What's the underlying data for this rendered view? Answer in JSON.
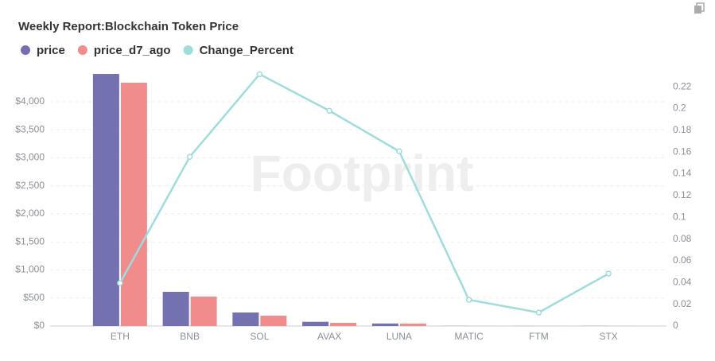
{
  "chart_data": {
    "type": "bar_line",
    "title": "Weekly Report:Blockchain Token Price",
    "watermark": "Footprint",
    "categories": [
      "ETH",
      "BNB",
      "SOL",
      "AVAX",
      "LUNA",
      "MATIC",
      "FTM",
      "STX"
    ],
    "series": [
      {
        "name": "price",
        "type": "bar",
        "color": "#7471b0",
        "values": [
          4496,
          610,
          241,
          75,
          45,
          2,
          1.5,
          2
        ]
      },
      {
        "name": "price_d7_ago",
        "type": "bar",
        "color": "#f08c8c",
        "values": [
          4340,
          525,
          184,
          57,
          42,
          2,
          1.5,
          2
        ]
      },
      {
        "name": "Change_Percent",
        "type": "line",
        "axis": "y2",
        "color": "#9fdcdc",
        "values": [
          0.0395,
          0.1556,
          0.2316,
          0.198,
          0.1607,
          0.0241,
          0.0124,
          0.0482
        ]
      }
    ],
    "ylim": [
      0,
      4500
    ],
    "yticks": [
      {
        "value": 0,
        "label": "$0"
      },
      {
        "value": 500,
        "label": "$500"
      },
      {
        "value": 1000,
        "label": "$1,000"
      },
      {
        "value": 1500,
        "label": "$1,500"
      },
      {
        "value": 2000,
        "label": "$2,000"
      },
      {
        "value": 2500,
        "label": "$2,500"
      },
      {
        "value": 3000,
        "label": "$3,000"
      },
      {
        "value": 3500,
        "label": "$3,500"
      },
      {
        "value": 4000,
        "label": "$4,000"
      }
    ],
    "y2lim": [
      0,
      0.232
    ],
    "y2ticks": [
      0,
      0.02,
      0.04,
      0.06,
      0.08,
      0.1,
      0.12,
      0.14,
      0.16,
      0.18,
      0.2,
      0.22
    ],
    "grid": true
  }
}
